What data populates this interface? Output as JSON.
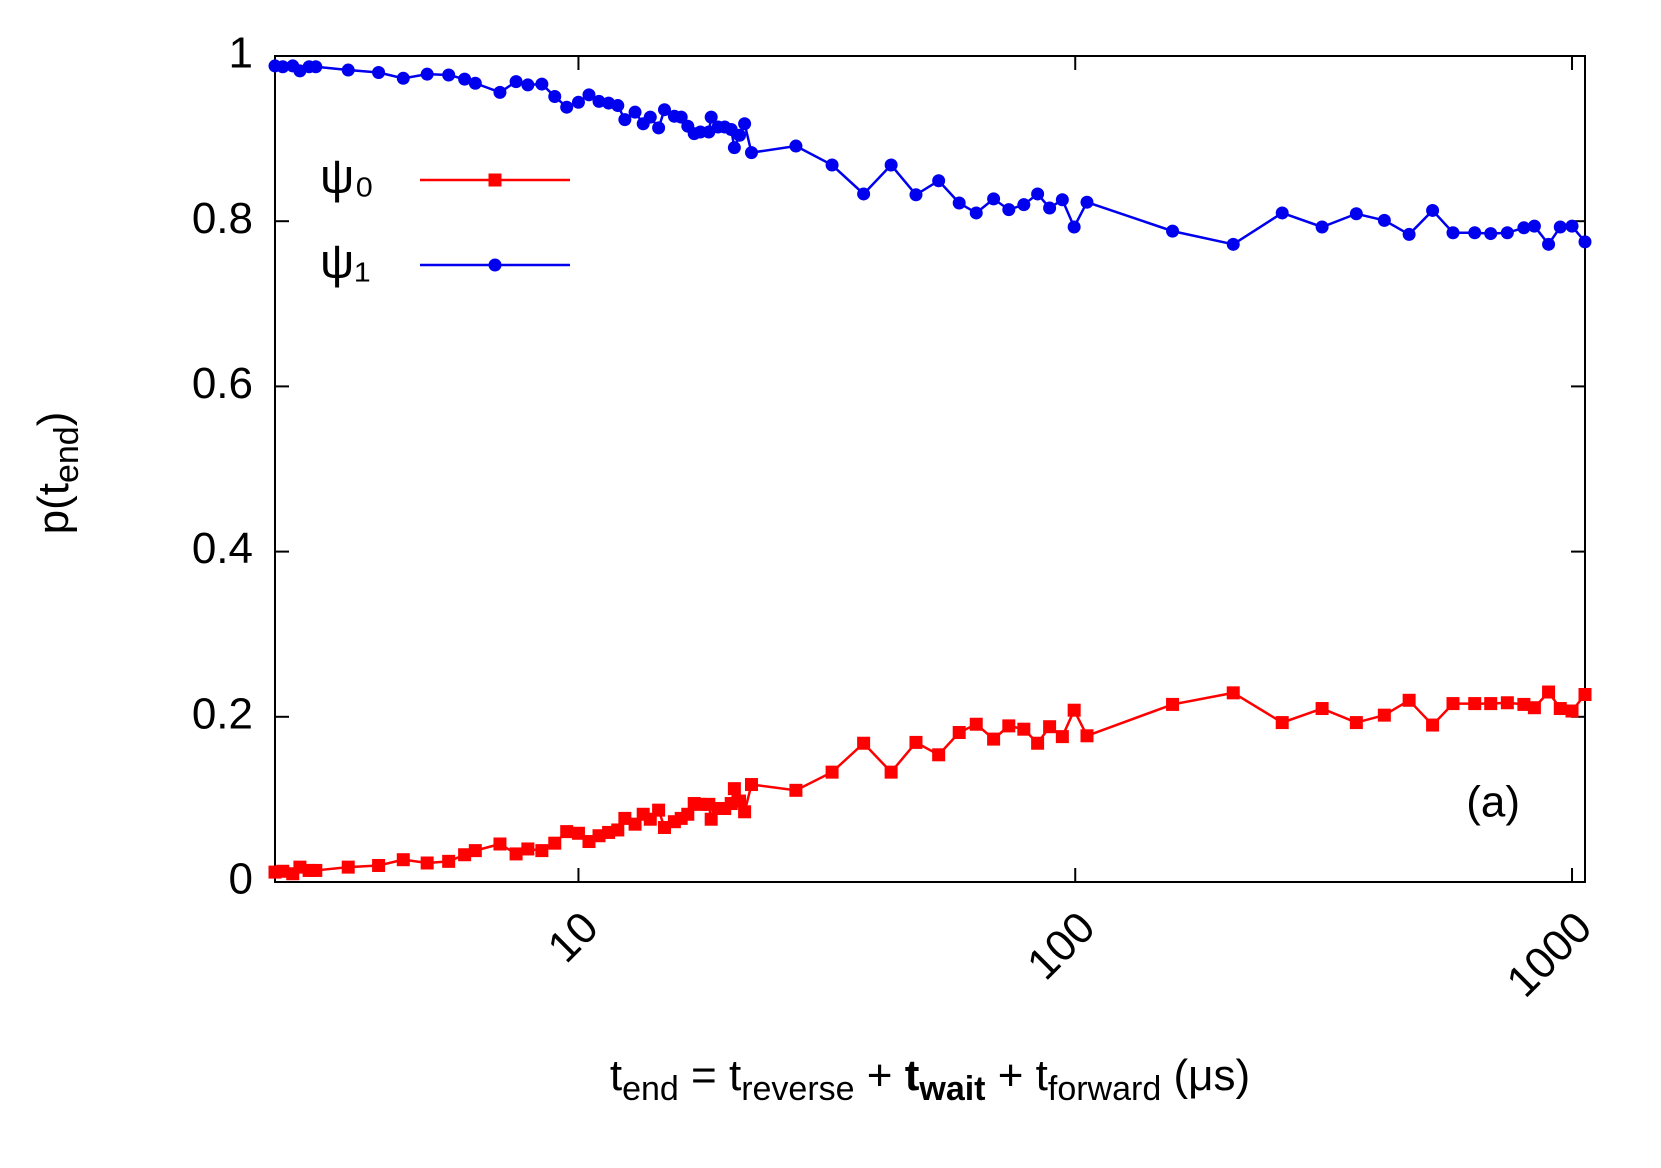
{
  "chart_data": {
    "type": "line",
    "xlabel_parts": [
      "t",
      "end",
      " = t",
      "reverse",
      " + ",
      "t",
      "wait",
      " + t",
      "forward",
      " (μs)"
    ],
    "ylabel_parts": [
      "p(t",
      "end",
      ")"
    ],
    "annotation": "(a)",
    "log_x": true,
    "xlim": [
      2.45,
      1062
    ],
    "ylim": [
      0,
      1
    ],
    "xticks": [
      10,
      100,
      1000
    ],
    "yticks": [
      0,
      0.2,
      0.4,
      0.6,
      0.8,
      1
    ],
    "legend": "upper left",
    "x": [
      2.45,
      2.54,
      2.66,
      2.75,
      2.87,
      2.96,
      3.44,
      3.96,
      4.44,
      4.96,
      5.48,
      5.9,
      6.2,
      6.95,
      7.49,
      7.91,
      8.44,
      8.96,
      9.47,
      10,
      10.5,
      11.0,
      11.5,
      12.0,
      12.4,
      13.0,
      13.5,
      13.95,
      14.5,
      14.9,
      15.6,
      16.1,
      16.6,
      17.1,
      17.6,
      18.3,
      18.5,
      19.1,
      19.7,
      20.3,
      20.6,
      21.1,
      21.6,
      22.3,
      27.4,
      32.4,
      37.5,
      42.6,
      47.8,
      53.1,
      58.4,
      63.2,
      68.5,
      73.5,
      78.8,
      84.0,
      88.8,
      94.2,
      99.5,
      105.6,
      157,
      208,
      261,
      314,
      368,
      419,
      470,
      524,
      576,
      637,
      686,
      741,
      800,
      840,
      897,
      947,
      1000,
      1062
    ],
    "series": [
      {
        "name": "ψ₀",
        "color": "#ff0000",
        "marker": "square",
        "values": [
          0.012,
          0.013,
          0.01,
          0.018,
          0.014,
          0.014,
          0.018,
          0.02,
          0.027,
          0.023,
          0.025,
          0.033,
          0.038,
          0.046,
          0.034,
          0.04,
          0.038,
          0.047,
          0.061,
          0.059,
          0.049,
          0.056,
          0.06,
          0.063,
          0.077,
          0.07,
          0.082,
          0.076,
          0.087,
          0.066,
          0.073,
          0.077,
          0.082,
          0.095,
          0.094,
          0.094,
          0.076,
          0.089,
          0.089,
          0.095,
          0.113,
          0.098,
          0.085,
          0.118,
          0.111,
          0.133,
          0.168,
          0.133,
          0.169,
          0.154,
          0.181,
          0.191,
          0.173,
          0.189,
          0.185,
          0.168,
          0.188,
          0.176,
          0.208,
          0.177,
          0.215,
          0.229,
          0.193,
          0.21,
          0.193,
          0.202,
          0.22,
          0.19,
          0.216,
          0.216,
          0.216,
          0.217,
          0.215,
          0.211,
          0.23,
          0.21,
          0.207,
          0.227
        ]
      },
      {
        "name": "ψ₁",
        "color": "#0000ee",
        "marker": "circle",
        "values": [
          0.988,
          0.987,
          0.988,
          0.982,
          0.987,
          0.987,
          0.983,
          0.98,
          0.973,
          0.978,
          0.977,
          0.972,
          0.967,
          0.956,
          0.969,
          0.965,
          0.966,
          0.951,
          0.938,
          0.944,
          0.953,
          0.945,
          0.943,
          0.94,
          0.923,
          0.932,
          0.918,
          0.926,
          0.913,
          0.935,
          0.927,
          0.926,
          0.915,
          0.906,
          0.908,
          0.908,
          0.926,
          0.914,
          0.914,
          0.911,
          0.889,
          0.904,
          0.918,
          0.883,
          0.891,
          0.868,
          0.833,
          0.868,
          0.832,
          0.849,
          0.822,
          0.81,
          0.827,
          0.814,
          0.82,
          0.833,
          0.816,
          0.826,
          0.793,
          0.823,
          0.788,
          0.772,
          0.81,
          0.793,
          0.809,
          0.801,
          0.784,
          0.813,
          0.786,
          0.786,
          0.785,
          0.786,
          0.792,
          0.794,
          0.772,
          0.793,
          0.794,
          0.775
        ]
      }
    ]
  }
}
